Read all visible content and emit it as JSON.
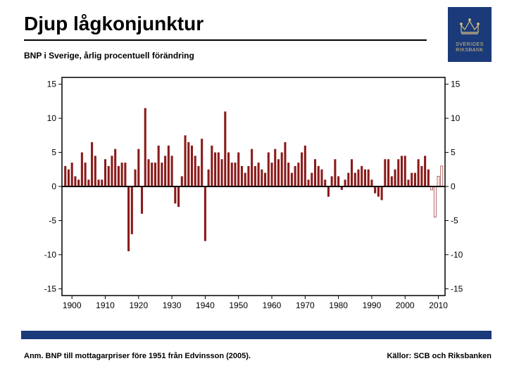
{
  "title": "Djup lågkonjunktur",
  "subtitle": "BNP i Sverige,  årlig procentuell förändring",
  "footnote": "Anm. BNP till mottagarpriser före 1951 från Edvinsson (2005).",
  "sources": "Källor: SCB och Riksbanken",
  "logo": {
    "bg": "#1a3a7a",
    "fg": "#d6c07a",
    "line1": "SVERIGES",
    "line2": "RIKSBANK"
  },
  "chart": {
    "type": "bar",
    "background_color": "#ffffff",
    "plot_border_color": "#000000",
    "zero_line_color": "#000000",
    "bar_color": "#8b1a1a",
    "forecast_bar_fill": "#ffffff",
    "forecast_bar_stroke": "#a04040",
    "tick_fontsize": 12,
    "tick_color": "#000000",
    "xlim": [
      1897,
      2012
    ],
    "ylim": [
      -16,
      16
    ],
    "yticks": [
      -15,
      -10,
      -5,
      0,
      5,
      10,
      15
    ],
    "yticks_right": [
      -15,
      -10,
      -5,
      0,
      5,
      10,
      15
    ],
    "xticks": [
      1900,
      1910,
      1920,
      1930,
      1940,
      1950,
      1960,
      1970,
      1980,
      1990,
      2000,
      2010
    ],
    "bar_width": 0.65,
    "forecast_start_year": 2008,
    "years": [
      1898,
      1899,
      1900,
      1901,
      1902,
      1903,
      1904,
      1905,
      1906,
      1907,
      1908,
      1909,
      1910,
      1911,
      1912,
      1913,
      1914,
      1915,
      1916,
      1917,
      1918,
      1919,
      1920,
      1921,
      1922,
      1923,
      1924,
      1925,
      1926,
      1927,
      1928,
      1929,
      1930,
      1931,
      1932,
      1933,
      1934,
      1935,
      1936,
      1937,
      1938,
      1939,
      1940,
      1941,
      1942,
      1943,
      1944,
      1945,
      1946,
      1947,
      1948,
      1949,
      1950,
      1951,
      1952,
      1953,
      1954,
      1955,
      1956,
      1957,
      1958,
      1959,
      1960,
      1961,
      1962,
      1963,
      1964,
      1965,
      1966,
      1967,
      1968,
      1969,
      1970,
      1971,
      1972,
      1973,
      1974,
      1975,
      1976,
      1977,
      1978,
      1979,
      1980,
      1981,
      1982,
      1983,
      1984,
      1985,
      1986,
      1987,
      1988,
      1989,
      1990,
      1991,
      1992,
      1993,
      1994,
      1995,
      1996,
      1997,
      1998,
      1999,
      2000,
      2001,
      2002,
      2003,
      2004,
      2005,
      2006,
      2007,
      2008,
      2009,
      2010,
      2011
    ],
    "values": [
      3.0,
      2.5,
      3.5,
      1.5,
      1.0,
      5.0,
      3.5,
      1.0,
      6.5,
      4.5,
      1.0,
      1.0,
      4.0,
      3.0,
      4.5,
      5.5,
      3.0,
      3.5,
      3.5,
      -9.5,
      -7.0,
      2.5,
      5.5,
      -4.0,
      11.5,
      4.0,
      3.5,
      3.5,
      6.0,
      3.5,
      4.5,
      6.0,
      4.5,
      -2.5,
      -3.0,
      1.5,
      7.5,
      6.5,
      6.0,
      4.5,
      3.0,
      7.0,
      -8.0,
      2.5,
      6.0,
      5.0,
      5.0,
      4.0,
      11.0,
      5.0,
      3.5,
      3.5,
      5.0,
      3.0,
      2.0,
      3.0,
      5.5,
      3.0,
      3.5,
      2.5,
      2.0,
      5.0,
      3.5,
      5.5,
      4.0,
      5.0,
      6.5,
      3.5,
      2.0,
      3.0,
      3.5,
      5.0,
      6.0,
      1.0,
      2.0,
      4.0,
      3.0,
      2.5,
      1.0,
      -1.5,
      1.5,
      4.0,
      1.5,
      -0.5,
      1.0,
      2.0,
      4.0,
      2.0,
      2.5,
      3.0,
      2.5,
      2.5,
      1.0,
      -1.0,
      -1.5,
      -2.0,
      4.0,
      4.0,
      1.5,
      2.5,
      4.0,
      4.5,
      4.5,
      1.0,
      2.0,
      2.0,
      4.0,
      3.0,
      4.5,
      2.5,
      -0.5,
      -4.5,
      1.5,
      3.0
    ]
  }
}
